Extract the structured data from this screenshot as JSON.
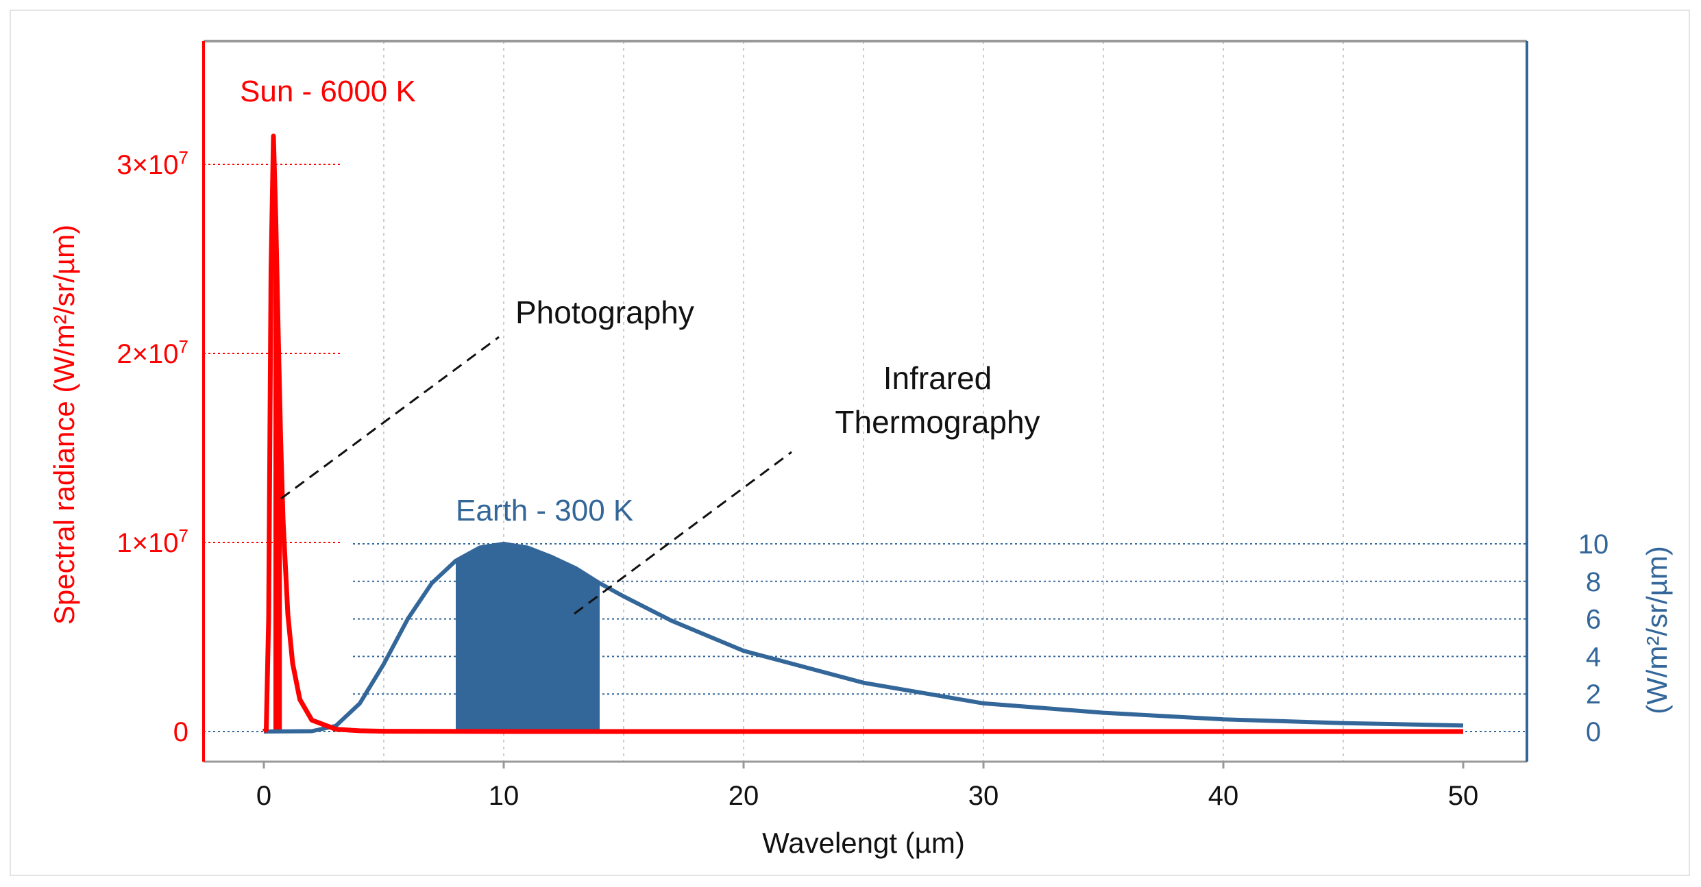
{
  "chart_data": {
    "type": "line",
    "xlabel": "Wavelengt (µm)",
    "ylabel_left": "Spectral radiance (W/m²/sr/µm)",
    "ylabel_right": "(W/m²/sr/µm)",
    "xlim": [
      0,
      50
    ],
    "x_ticks": [
      0,
      10,
      20,
      30,
      40,
      50
    ],
    "x_tick_labels": [
      "0",
      "10",
      "20",
      "30",
      "40",
      "50"
    ],
    "ylim_left": [
      0,
      30000000
    ],
    "y_ticks_left": [
      0,
      10000000,
      20000000,
      30000000
    ],
    "y_tick_labels_left": [
      {
        "base": "0",
        "exp": ""
      },
      {
        "base": "1×10",
        "exp": "7"
      },
      {
        "base": "2×10",
        "exp": "7"
      },
      {
        "base": "3×10",
        "exp": "7"
      }
    ],
    "ylim_right": [
      0,
      10
    ],
    "y_ticks_right": [
      0,
      2,
      4,
      6,
      8,
      10
    ],
    "y_tick_labels_right": [
      "0",
      "2",
      "4",
      "6",
      "8",
      "10"
    ],
    "grid": "vertical dotted",
    "colors": {
      "sun": "#ff0000",
      "earth": "#336699",
      "grid": "#cccccc",
      "frame": "#999999",
      "annotation": "#111111"
    },
    "series": [
      {
        "name": "Sun - 6000 K",
        "axis": "left",
        "x": [
          0.0,
          0.1,
          0.2,
          0.3,
          0.4,
          0.5,
          0.6,
          0.7,
          0.8,
          1.0,
          1.2,
          1.5,
          2.0,
          3.0,
          4.0,
          5.0,
          10,
          20,
          30,
          40,
          50
        ],
        "y": [
          0,
          100000,
          6000000,
          24500000,
          31500000,
          27000000,
          21000000,
          15500000,
          11200000,
          6200000,
          3600000,
          1700000,
          600000,
          120000,
          40000,
          15000,
          1000,
          100,
          20,
          5,
          2
        ]
      },
      {
        "name": "Earth - 300 K",
        "axis": "right",
        "x": [
          0,
          2,
          3,
          4,
          5,
          6,
          7,
          8,
          9,
          10,
          11,
          12,
          13,
          14,
          15,
          17,
          20,
          25,
          30,
          35,
          40,
          45,
          50
        ],
        "y": [
          0,
          0.02,
          0.3,
          1.5,
          3.6,
          6.0,
          7.9,
          9.1,
          9.8,
          10.0,
          9.8,
          9.3,
          8.7,
          7.9,
          7.2,
          5.9,
          4.3,
          2.6,
          1.5,
          1.0,
          0.65,
          0.45,
          0.32
        ]
      }
    ],
    "shaded_regions": [
      {
        "series": "Sun - 6000 K",
        "x_from": 0.4,
        "x_to": 0.75
      },
      {
        "series": "Earth - 300 K",
        "x_from": 8,
        "x_to": 14
      }
    ],
    "annotations": [
      {
        "text": "Photography",
        "points_to": "Sun - 6000 K"
      },
      {
        "text": "Infrared Thermography",
        "lines": [
          "Infrared",
          "Thermography"
        ],
        "points_to": "Earth - 300 K"
      }
    ]
  }
}
